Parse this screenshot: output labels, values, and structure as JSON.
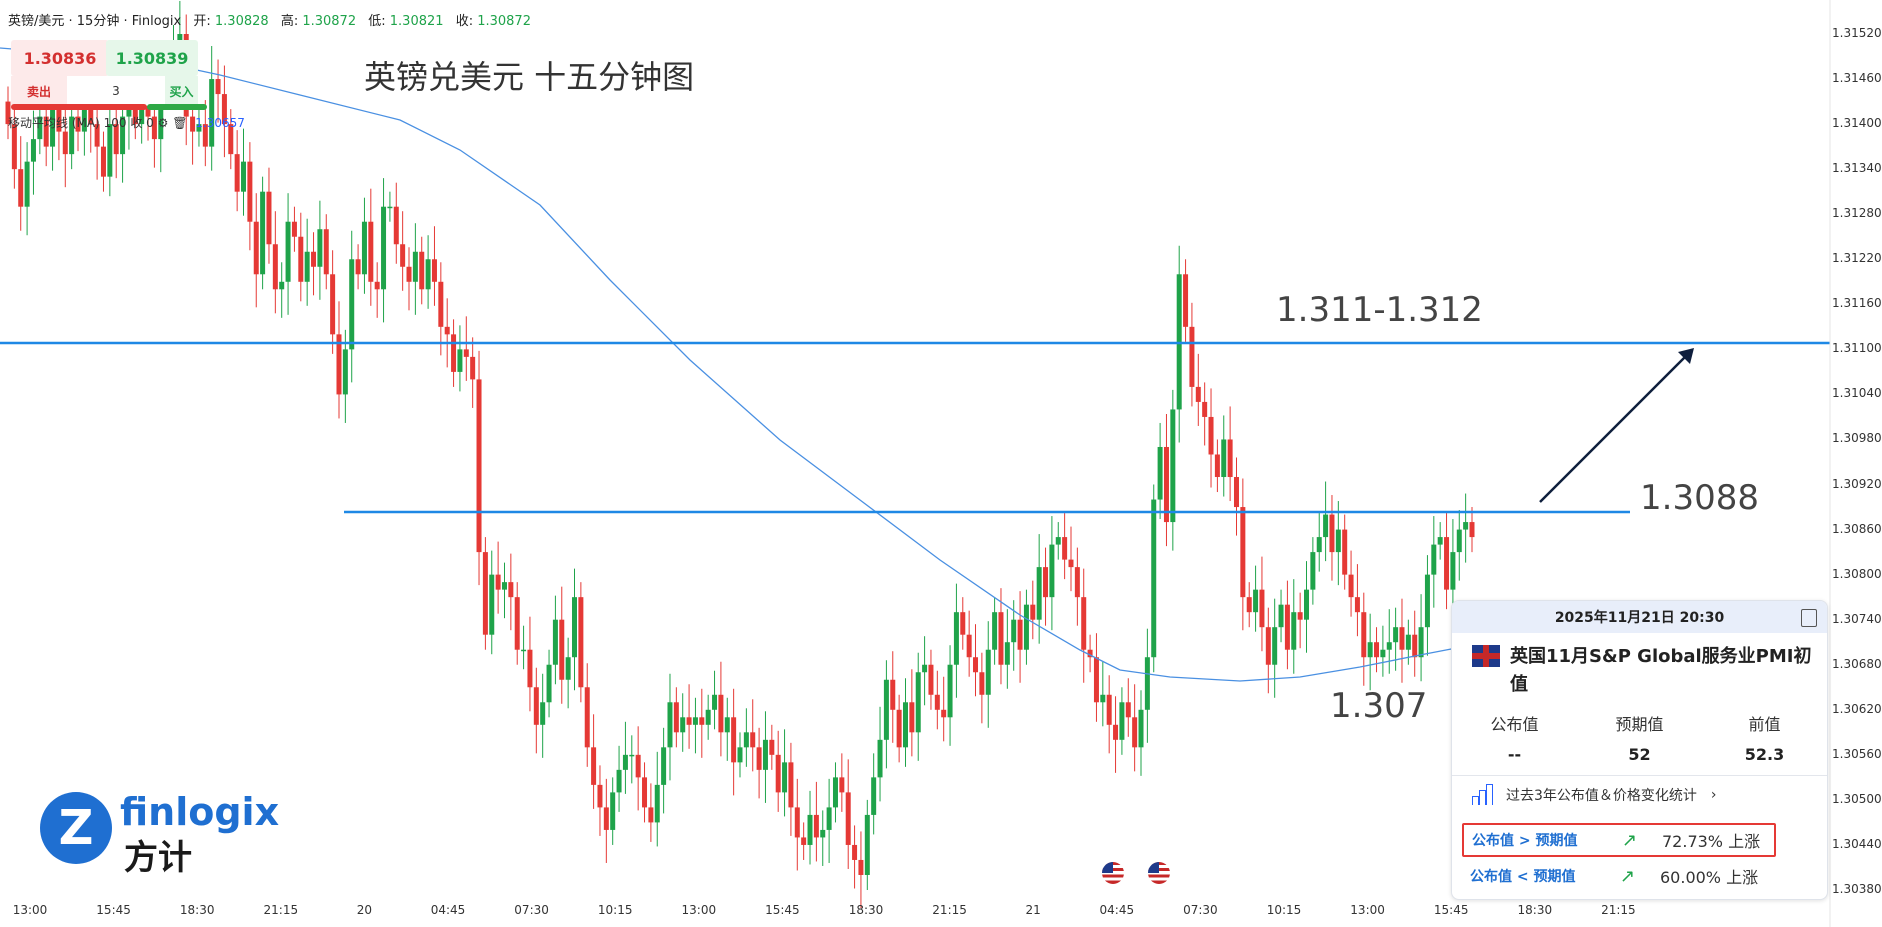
{
  "header": {
    "symbol": "英镑/美元 · 15分钟 · Finlogix",
    "open_label": "开:",
    "open_value": "1.30828",
    "high_label": "高:",
    "high_value": "1.30872",
    "low_label": "低:",
    "low_value": "1.30821",
    "close_label": "收:",
    "close_value": "1.30872"
  },
  "trade": {
    "sell_price": "1.30836",
    "buy_price": "1.30839",
    "sell_label": "卖出",
    "buy_label": "买入",
    "quantity": "3"
  },
  "indicator": {
    "label": "移动平均线 (MA)",
    "period": "100",
    "source": "收",
    "offset": "0",
    "value": "1.30657"
  },
  "chart_title": "英镑兑美元 十五分钟图",
  "annotations": {
    "upper_level": "1.311-1.312",
    "mid_level": "1.3088",
    "low_level": "1.307"
  },
  "logo": {
    "brand": "finlogix",
    "brand_cn": "方计"
  },
  "chart_data": {
    "type": "candlestick",
    "title": "英镑兑美元 十五分钟图",
    "y_ticks": [
      "1.31520",
      "1.31460",
      "1.31400",
      "1.31340",
      "1.31280",
      "1.31220",
      "1.31160",
      "1.31100",
      "1.31040",
      "1.30980",
      "1.30920",
      "1.30860",
      "1.30800",
      "1.30740",
      "1.30680",
      "1.30620",
      "1.30560",
      "1.30500",
      "1.30440",
      "1.30380"
    ],
    "x_ticks": [
      "13:00",
      "15:45",
      "18:30",
      "21:15",
      "20",
      "04:45",
      "07:30",
      "10:15",
      "13:00",
      "15:45",
      "18:30",
      "21:15",
      "21",
      "04:45",
      "07:30",
      "10:15",
      "13:00",
      "15:45",
      "18:30",
      "21:15"
    ],
    "ylim": [
      1.3035,
      1.3155
    ],
    "horizontal_levels": [
      1.311,
      1.3088
    ],
    "colors": {
      "up": "#1fa34a",
      "down": "#e53935",
      "ma": "#4a90e2",
      "level": "#1e88e5"
    },
    "closes": [
      1.314,
      1.3134,
      1.3129,
      1.3135,
      1.3138,
      1.3141,
      1.3137,
      1.3142,
      1.3139,
      1.3136,
      1.3141,
      1.3139,
      1.3143,
      1.314,
      1.3137,
      1.3133,
      1.314,
      1.3136,
      1.3141,
      1.3142,
      1.314,
      1.3143,
      1.3141,
      1.3138,
      1.3145,
      1.3149,
      1.315,
      1.3152,
      1.3141,
      1.3139,
      1.314,
      1.3137,
      1.3146,
      1.3144,
      1.314,
      1.3136,
      1.3131,
      1.3135,
      1.3127,
      1.312,
      1.3131,
      1.3124,
      1.3118,
      1.3119,
      1.3127,
      1.3125,
      1.3119,
      1.3123,
      1.3121,
      1.3126,
      1.312,
      1.3112,
      1.3104,
      1.311,
      1.3122,
      1.312,
      1.3127,
      1.3119,
      1.3118,
      1.3129,
      1.3129,
      1.3124,
      1.3121,
      1.3119,
      1.3123,
      1.3118,
      1.3122,
      1.3119,
      1.3113,
      1.3112,
      1.3107,
      1.311,
      1.3109,
      1.3106,
      1.3083,
      1.3072,
      1.308,
      1.3078,
      1.3079,
      1.3077,
      1.307,
      1.307,
      1.3065,
      1.306,
      1.3063,
      1.3068,
      1.3074,
      1.3066,
      1.3069,
      1.3077,
      1.3065,
      1.3057,
      1.3052,
      1.3049,
      1.3046,
      1.3051,
      1.3054,
      1.3056,
      1.3056,
      1.3053,
      1.3049,
      1.3047,
      1.3052,
      1.3057,
      1.3063,
      1.3059,
      1.3061,
      1.306,
      1.3061,
      1.306,
      1.3062,
      1.3064,
      1.3059,
      1.3061,
      1.3055,
      1.3057,
      1.3059,
      1.3057,
      1.3054,
      1.3058,
      1.3056,
      1.3051,
      1.3055,
      1.3049,
      1.3045,
      1.3044,
      1.3048,
      1.3045,
      1.3046,
      1.3049,
      1.3053,
      1.3051,
      1.3044,
      1.3042,
      1.304,
      1.3048,
      1.3053,
      1.3058,
      1.3066,
      1.3062,
      1.3057,
      1.3063,
      1.3059,
      1.3067,
      1.3068,
      1.3064,
      1.3062,
      1.3061,
      1.3068,
      1.3075,
      1.3072,
      1.3069,
      1.3067,
      1.3064,
      1.307,
      1.3075,
      1.3068,
      1.3071,
      1.3074,
      1.307,
      1.3076,
      1.3074,
      1.3081,
      1.3077,
      1.3084,
      1.3085,
      1.3082,
      1.3081,
      1.3077,
      1.307,
      1.3069,
      1.3063,
      1.3064,
      1.306,
      1.3058,
      1.3063,
      1.3061,
      1.3057,
      1.3062,
      1.3069,
      1.309,
      1.3097,
      1.3087,
      1.3102,
      1.312,
      1.3113,
      1.3105,
      1.3103,
      1.3101,
      1.3096,
      1.3093,
      1.3098,
      1.3093,
      1.3089,
      1.3077,
      1.3075,
      1.3078,
      1.3073,
      1.3068,
      1.3073,
      1.3076,
      1.307,
      1.3075,
      1.3074,
      1.3078,
      1.3083,
      1.3085,
      1.3088,
      1.3083,
      1.3086,
      1.308,
      1.3077,
      1.3075,
      1.3069,
      1.3071,
      1.3069,
      1.307,
      1.3071,
      1.3073,
      1.307,
      1.3072,
      1.3069,
      1.3073,
      1.308,
      1.3084,
      1.3085,
      1.3078,
      1.3083,
      1.3086,
      1.3087,
      1.3085
    ]
  },
  "panel": {
    "date": "2025年11月21日 20:30",
    "event": "英国11月S&P Global服务业PMI初值",
    "cols": [
      {
        "label": "公布值",
        "value": "--"
      },
      {
        "label": "预期值",
        "value": "52"
      },
      {
        "label": "前值",
        "value": "52.3"
      }
    ],
    "stats_link": "过去3年公布值＆价格变化统计",
    "rows": [
      {
        "label": "公布值 > 预期值",
        "pct": "72.73% 上涨"
      },
      {
        "label": "公布值 < 预期值",
        "pct": "60.00% 上涨"
      }
    ]
  }
}
